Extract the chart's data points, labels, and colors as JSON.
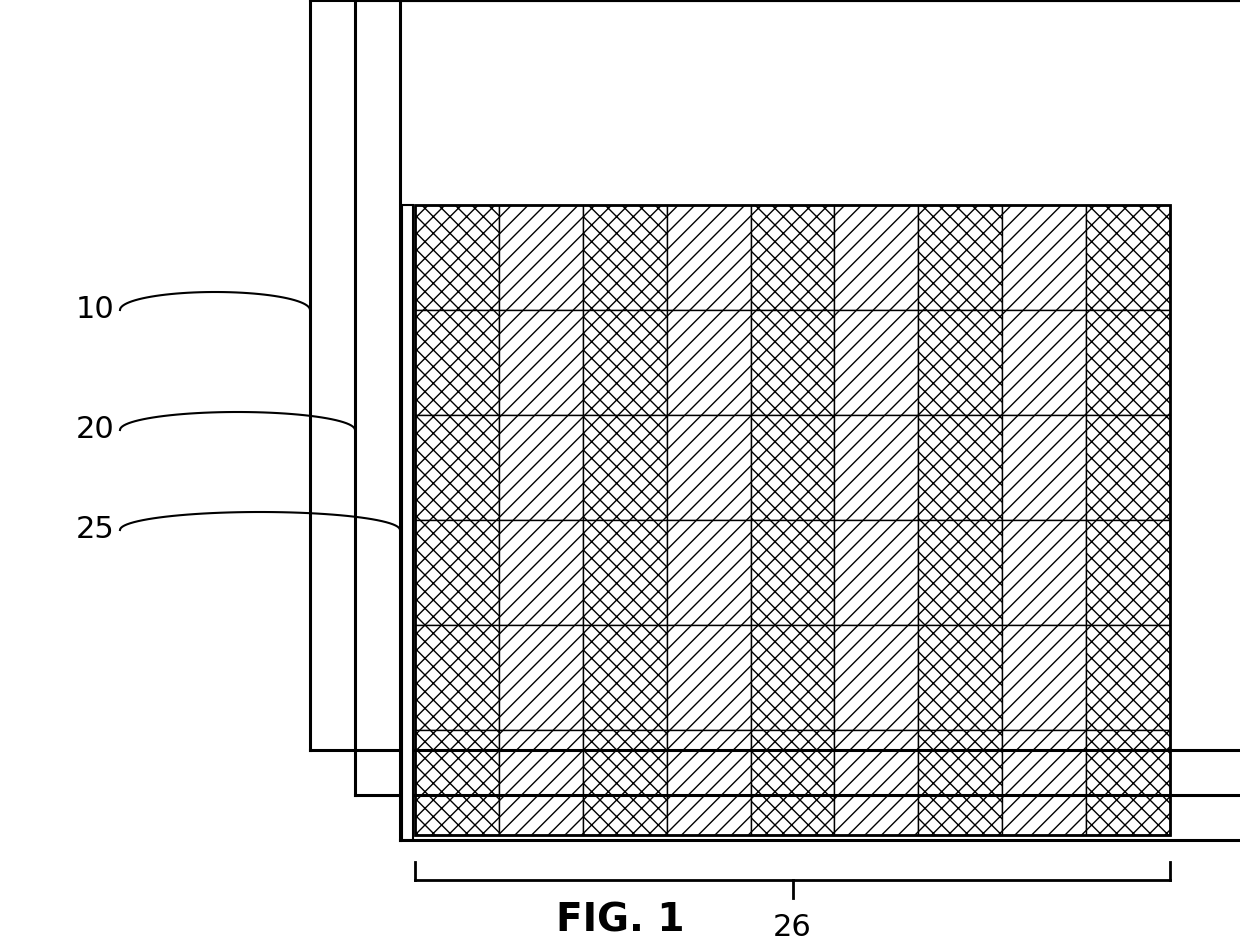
{
  "background_color": "#ffffff",
  "line_color": "#000000",
  "fig_label": "FIG. 1",
  "grid_rows": 6,
  "grid_cols": 9,
  "label_10": "10",
  "label_20": "20",
  "label_25": "25",
  "label_26": "26",
  "label_fontsize": 22,
  "figlabel_fontsize": 28
}
